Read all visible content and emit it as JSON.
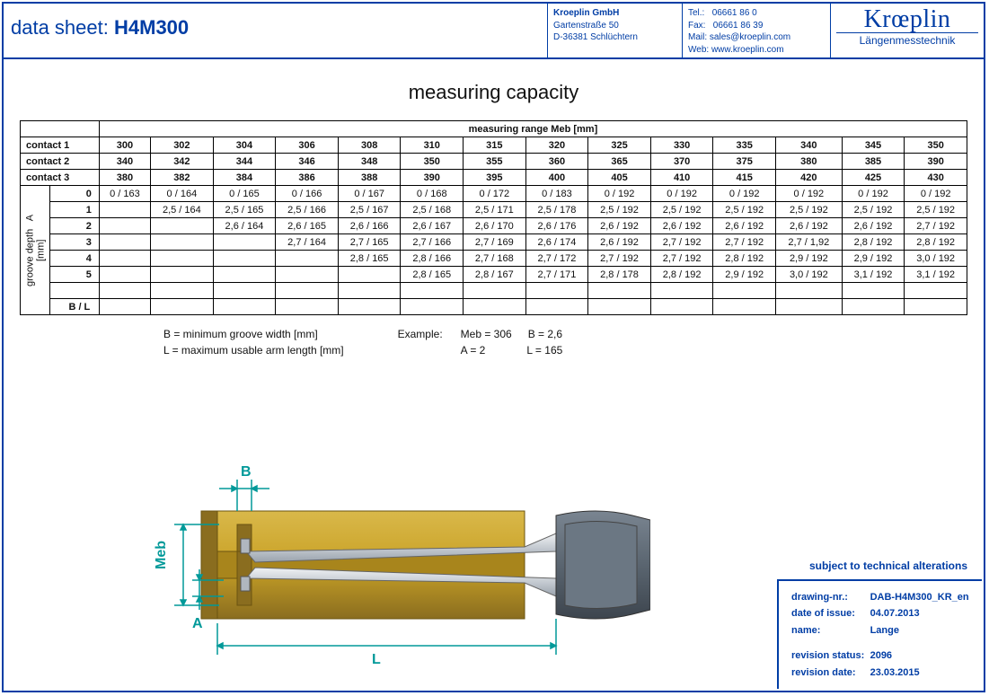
{
  "header": {
    "title_label": "data sheet:",
    "title_value": "H4M300",
    "company": "Kroeplin GmbH",
    "street": "Gartenstraße 50",
    "city": "D-36381 Schlüchtern",
    "tel_label": "Tel.:",
    "tel": "06661 86 0",
    "fax_label": "Fax:",
    "fax": "06661 86 39",
    "mail_label": "Mail:",
    "mail": "sales@kroeplin.com",
    "web_label": "Web:",
    "web": "www.kroeplin.com",
    "logo_main": "Krœplin",
    "logo_sub": "Längenmesstechnik"
  },
  "section_title": "measuring capacity",
  "table": {
    "super_header": "measuring range   Meb   [mm]",
    "row_labels": {
      "c1": "contact 1",
      "c2": "contact 2",
      "c3": "contact 3"
    },
    "side_label": "groove depth   A\n[mm]",
    "depth_labels": [
      "0",
      "1",
      "2",
      "3",
      "4",
      "5",
      ""
    ],
    "bl_label": "B / L",
    "contact1": [
      "300",
      "302",
      "304",
      "306",
      "308",
      "310",
      "315",
      "320",
      "325",
      "330",
      "335",
      "340",
      "345",
      "350"
    ],
    "contact2": [
      "340",
      "342",
      "344",
      "346",
      "348",
      "350",
      "355",
      "360",
      "365",
      "370",
      "375",
      "380",
      "385",
      "390"
    ],
    "contact3": [
      "380",
      "382",
      "384",
      "386",
      "388",
      "390",
      "395",
      "400",
      "405",
      "410",
      "415",
      "420",
      "425",
      "430"
    ],
    "rows": [
      [
        "0 / 163",
        "0 / 164",
        "0 / 165",
        "0 / 166",
        "0 / 167",
        "0 / 168",
        "0 / 172",
        "0 / 183",
        "0 / 192",
        "0 / 192",
        "0 / 192",
        "0 / 192",
        "0 / 192",
        "0 / 192"
      ],
      [
        "",
        "2,5 / 164",
        "2,5 / 165",
        "2,5 / 166",
        "2,5 / 167",
        "2,5 / 168",
        "2,5 / 171",
        "2,5 / 178",
        "2,5 / 192",
        "2,5 / 192",
        "2,5 / 192",
        "2,5 / 192",
        "2,5 / 192",
        "2,5 / 192"
      ],
      [
        "",
        "",
        "2,6 / 164",
        "2,6 / 165",
        "2,6 / 166",
        "2,6 / 167",
        "2,6 / 170",
        "2,6 / 176",
        "2,6 / 192",
        "2,6 / 192",
        "2,6 / 192",
        "2,6 / 192",
        "2,6 / 192",
        "2,7 / 192"
      ],
      [
        "",
        "",
        "",
        "2,7 / 164",
        "2,7 / 165",
        "2,7 / 166",
        "2,7 / 169",
        "2,6 / 174",
        "2,6 / 192",
        "2,7 / 192",
        "2,7 / 192",
        "2,7 / 1,92",
        "2,8 / 192",
        "2,8 / 192"
      ],
      [
        "",
        "",
        "",
        "",
        "2,8 / 165",
        "2,8 / 166",
        "2,7 / 168",
        "2,7 / 172",
        "2,7 / 192",
        "2,7 / 192",
        "2,8 / 192",
        "2,9 / 192",
        "2,9 / 192",
        "3,0 / 192"
      ],
      [
        "",
        "",
        "",
        "",
        "",
        "2,8 / 165",
        "2,8 / 167",
        "2,7 / 171",
        "2,8 / 178",
        "2,8 / 192",
        "2,9 / 192",
        "3,0 / 192",
        "3,1 / 192",
        "3,1 / 192"
      ],
      [
        "",
        "",
        "",
        "",
        "",
        "",
        "",
        "",
        "",
        "",
        "",
        "",
        "",
        ""
      ]
    ]
  },
  "legend": {
    "b_def": "B = minimum groove width [mm]",
    "l_def": "L = maximum usable arm length [mm]",
    "example_label": "Example:",
    "ex_meb": "Meb = 306",
    "ex_b": "B = 2,6",
    "ex_a": "A = 2",
    "ex_l": "L = 165"
  },
  "diagram_labels": {
    "B": "B",
    "Meb": "Meb",
    "A": "A",
    "L": "L"
  },
  "footer_note": "subject to technical alterations",
  "revbox": {
    "drawing_label": "drawing-nr.:",
    "drawing": "DAB-H4M300_KR_en",
    "issue_label": "date of issue:",
    "issue": "04.07.2013",
    "name_label": "name:",
    "name": "Lange",
    "revstatus_label": "revision status:",
    "revstatus": "2096",
    "revdate_label": "revision date:",
    "revdate": "23.03.2015"
  },
  "colors": {
    "frame": "#003da5",
    "dim": "#009999",
    "brass1": "#c9a227",
    "brass2": "#8a6d1f",
    "steel1": "#d9dde2",
    "steel2": "#9aa3ad",
    "handle": "#5a6570"
  }
}
